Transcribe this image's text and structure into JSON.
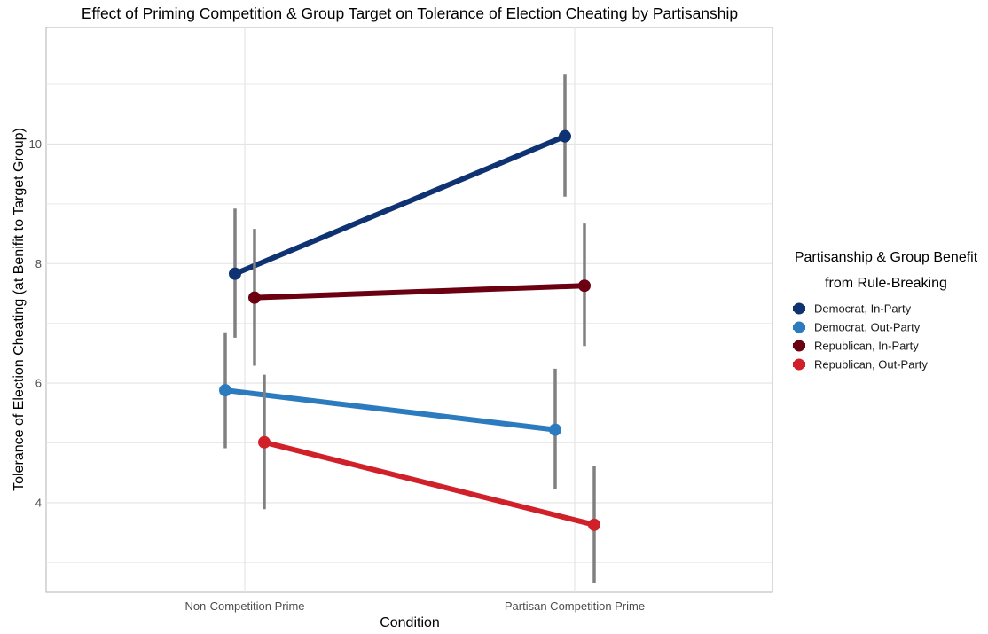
{
  "chart_data": {
    "type": "line",
    "title": "Effect of Priming Competition & Group Target on Tolerance of Election Cheating by Partisanship",
    "xlabel": "Condition",
    "ylabel": "Tolerance of Election Cheating (at Benifit to Target Group)",
    "categories": [
      "Non-Competition Prime",
      "Partisan Competition Prime"
    ],
    "ylim": [
      2.5,
      11.95
    ],
    "yticks": [
      4,
      6,
      8,
      10
    ],
    "y_tick_labels": [
      "4",
      "6",
      "8",
      "10"
    ],
    "grid": true,
    "legend": {
      "title_lines": [
        "Partisanship & Group Benefit",
        "from Rule-Breaking"
      ],
      "position": "right"
    },
    "series": [
      {
        "name": "Democrat, In-Party",
        "color": "#0f3272",
        "values": [
          7.83,
          10.13
        ],
        "ci_low": [
          6.76,
          9.12
        ],
        "ci_high": [
          8.92,
          11.16
        ]
      },
      {
        "name": "Democrat, Out-Party",
        "color": "#2c7bbf",
        "values": [
          5.88,
          5.22
        ],
        "ci_low": [
          4.91,
          4.22
        ],
        "ci_high": [
          6.85,
          6.24
        ]
      },
      {
        "name": "Republican, In-Party",
        "color": "#6b0011",
        "values": [
          7.43,
          7.63
        ],
        "ci_low": [
          6.29,
          6.62
        ],
        "ci_high": [
          8.58,
          8.67
        ]
      },
      {
        "name": "Republican, Out-Party",
        "color": "#d0202a",
        "values": [
          5.01,
          3.63
        ],
        "ci_low": [
          3.89,
          2.66
        ],
        "ci_high": [
          6.14,
          4.61
        ]
      }
    ]
  }
}
